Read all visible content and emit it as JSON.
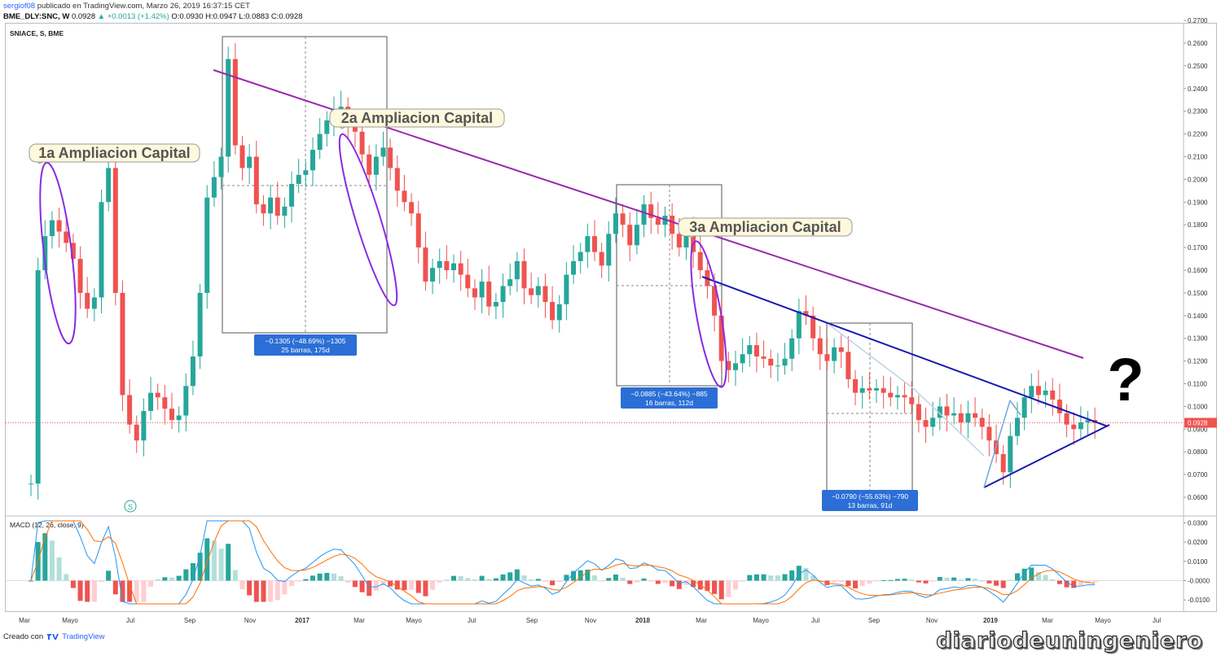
{
  "header": {
    "user": "sergiof08",
    "published": "publicado en TradingView.com, Marzo 26, 2019 16:37:15 CET",
    "symbol": "BME_DLY:SNC, W",
    "price": "0.0928",
    "change": "+0.0013 (+1.42%)",
    "ohlc": "O:0.0930 H:0.0947 L:0.0883 C:0.0928"
  },
  "footer": {
    "created": "Creado con",
    "brand": "TradingView"
  },
  "watermark": "diariodeuningeniero",
  "chart_data": [
    {
      "type": "candlestick",
      "title": "SNIACE, S, BME",
      "ylim": [
        0.06,
        0.27
      ],
      "y_ticks": [
        "0.2700",
        "0.2600",
        "0.2500",
        "0.2400",
        "0.2300",
        "0.2200",
        "0.2100",
        "0.2000",
        "0.1900",
        "0.1800",
        "0.1700",
        "0.1600",
        "0.1500",
        "0.1400",
        "0.1300",
        "0.1200",
        "0.1100",
        "0.1000",
        "0.0900",
        "0.0800",
        "0.0700",
        "0.0600"
      ],
      "x_ticks": [
        "Mar",
        "Mayo",
        "Jul",
        "Sep",
        "Nov",
        "2017",
        "Mar",
        "Mayo",
        "Jul",
        "Sep",
        "Nov",
        "2018",
        "Mar",
        "Mayo",
        "Jul",
        "Sep",
        "Nov",
        "2019",
        "Mar",
        "Mayo",
        "Jul"
      ],
      "colors": {
        "up": "#26a69a",
        "down": "#ef5350",
        "resistance": "#9c27b0",
        "triangle": "#1a1ab0"
      },
      "last_price": "0.0928",
      "price_line_color": "#ef5350",
      "callouts": [
        {
          "text": "1a Ampliacion Capital"
        },
        {
          "text": "2a Ampliacion Capital"
        },
        {
          "text": "3a Ampliacion Capital"
        }
      ],
      "measurements": [
        {
          "line1": "−0.1305 (−48.69%) −1305",
          "line2": "25 barras, 175d"
        },
        {
          "line1": "−0.0885 (−43.64%) −885",
          "line2": "16 barras, 112d"
        },
        {
          "line1": "−0.0790 (−55.63%) −790",
          "line2": "13 barras, 91d"
        }
      ],
      "question_mark": "?",
      "marker_s": "S",
      "closes": [
        0.066,
        0.16,
        0.175,
        0.182,
        0.177,
        0.172,
        0.165,
        0.15,
        0.143,
        0.148,
        0.19,
        0.205,
        0.15,
        0.105,
        0.092,
        0.085,
        0.098,
        0.106,
        0.104,
        0.099,
        0.094,
        0.096,
        0.109,
        0.122,
        0.15,
        0.192,
        0.201,
        0.21,
        0.253,
        0.215,
        0.205,
        0.21,
        0.189,
        0.185,
        0.192,
        0.184,
        0.188,
        0.198,
        0.202,
        0.204,
        0.213,
        0.22,
        0.226,
        0.231,
        0.232,
        0.224,
        0.221,
        0.211,
        0.202,
        0.21,
        0.214,
        0.205,
        0.195,
        0.19,
        0.185,
        0.17,
        0.155,
        0.161,
        0.164,
        0.16,
        0.163,
        0.158,
        0.152,
        0.148,
        0.155,
        0.144,
        0.146,
        0.153,
        0.156,
        0.164,
        0.152,
        0.149,
        0.153,
        0.146,
        0.138,
        0.145,
        0.158,
        0.164,
        0.168,
        0.175,
        0.168,
        0.162,
        0.176,
        0.185,
        0.18,
        0.171,
        0.18,
        0.189,
        0.183,
        0.18,
        0.184,
        0.176,
        0.17,
        0.178,
        0.168,
        0.16,
        0.153,
        0.14,
        0.12,
        0.116,
        0.119,
        0.123,
        0.127,
        0.122,
        0.121,
        0.118,
        0.118,
        0.121,
        0.13,
        0.142,
        0.14,
        0.13,
        0.123,
        0.12,
        0.126,
        0.124,
        0.112,
        0.106,
        0.108,
        0.107,
        0.108,
        0.106,
        0.104,
        0.105,
        0.104,
        0.101,
        0.094,
        0.091,
        0.095,
        0.1,
        0.096,
        0.097,
        0.093,
        0.097,
        0.095,
        0.091,
        0.085,
        0.079,
        0.071,
        0.087,
        0.095,
        0.104,
        0.109,
        0.105,
        0.107,
        0.103,
        0.097,
        0.092,
        0.09,
        0.093,
        0.094,
        0.0928
      ],
      "macd": {
        "label": "MACD (12, 26, close, 9)",
        "ylim": [
          -0.0125,
          0.0325
        ],
        "y_ticks": [
          "0.0300",
          "0.0200",
          "0.0100",
          "-0.0000",
          "-0.0100"
        ],
        "colors": {
          "macd": "#2196f3",
          "signal": "#ff6d00",
          "hist_up_strong": "#26a69a",
          "hist_up_weak": "#b2dfdb",
          "hist_down_strong": "#ef5350",
          "hist_down_weak": "#ffcdd2"
        }
      }
    }
  ]
}
